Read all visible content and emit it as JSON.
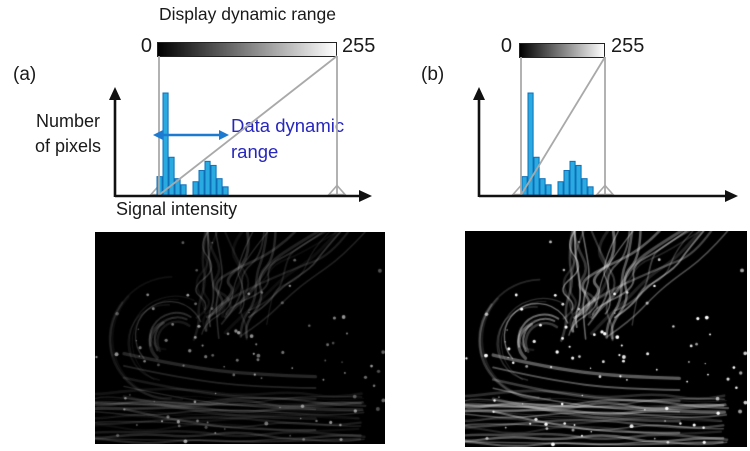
{
  "figure_title": "Display dynamic range",
  "panel_a": {
    "label": "(a)",
    "gradient_min": "0",
    "gradient_max": "255",
    "ylabel_line1": "Number",
    "ylabel_line2": "of pixels",
    "xlabel": "Signal intensity",
    "annotation_line1": "Data dynamic",
    "annotation_line2": "range"
  },
  "panel_b": {
    "label": "(b)",
    "gradient_min": "0",
    "gradient_max": "255"
  },
  "colors": {
    "histogram_fill": "#29ABE2",
    "histogram_stroke": "#0D6FB8",
    "annotation_blue": "#2727BC",
    "arrow_blue": "#1C7AD1",
    "mapping_gray": "#A9A9A9",
    "axis_black": "#111111"
  },
  "micrographs": [
    {
      "panel": "a",
      "brightness": 0.42
    },
    {
      "panel": "b",
      "brightness": 1.0
    }
  ],
  "chart_data": [
    {
      "type": "bar",
      "panel": "(a)",
      "title": "Display dynamic range",
      "xlabel": "Signal intensity",
      "ylabel": "Number of pixels",
      "categories": [
        "bin1",
        "bin2",
        "bin3",
        "bin4",
        "bin5",
        "gap",
        "bin6",
        "bin7",
        "bin8",
        "bin9",
        "bin10",
        "bin11"
      ],
      "values": [
        18,
        100,
        37,
        16,
        10,
        0,
        13,
        24,
        33,
        29,
        16,
        8
      ],
      "ylim": [
        0,
        105
      ],
      "grid": false,
      "display_range_labels": {
        "min": "0",
        "max": "255"
      },
      "annotations": [
        "Data dynamic range"
      ]
    },
    {
      "type": "bar",
      "panel": "(b)",
      "title": "",
      "xlabel": "",
      "ylabel": "",
      "categories": [
        "bin1",
        "bin2",
        "bin3",
        "bin4",
        "bin5",
        "gap",
        "bin6",
        "bin7",
        "bin8",
        "bin9",
        "bin10",
        "bin11"
      ],
      "values": [
        18,
        100,
        37,
        16,
        10,
        0,
        13,
        24,
        33,
        29,
        16,
        8
      ],
      "ylim": [
        0,
        105
      ],
      "grid": false,
      "display_range_labels": {
        "min": "0",
        "max": "255"
      },
      "annotations": []
    }
  ]
}
